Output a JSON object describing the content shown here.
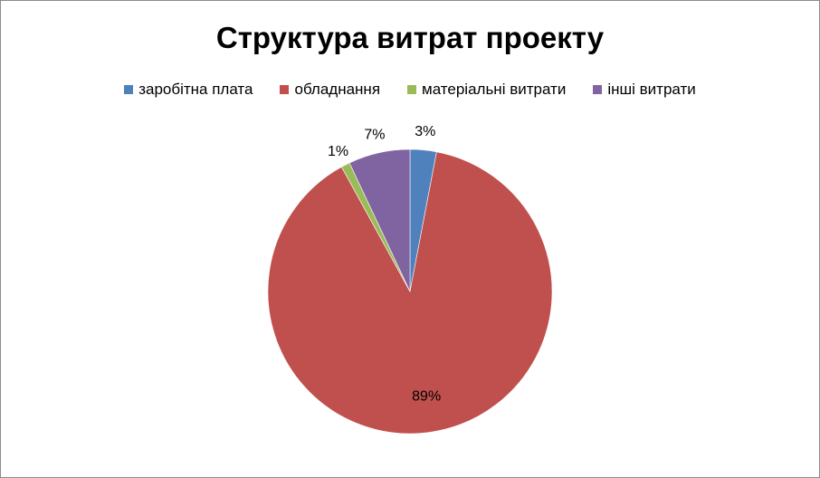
{
  "chart_data": {
    "type": "pie",
    "title": "Структура витрат проекту",
    "legend_position": "top",
    "slices": [
      {
        "name": "заробітна плата",
        "value": 3,
        "label": "3%",
        "color": "#4f81bd"
      },
      {
        "name": "обладнання",
        "value": 89,
        "label": "89%",
        "color": "#c0504d"
      },
      {
        "name": "матеріальні витрати",
        "value": 1,
        "label": "1%",
        "color": "#9bbb59"
      },
      {
        "name": "інші витрати",
        "value": 7,
        "label": "7%",
        "color": "#8064a2"
      }
    ]
  }
}
